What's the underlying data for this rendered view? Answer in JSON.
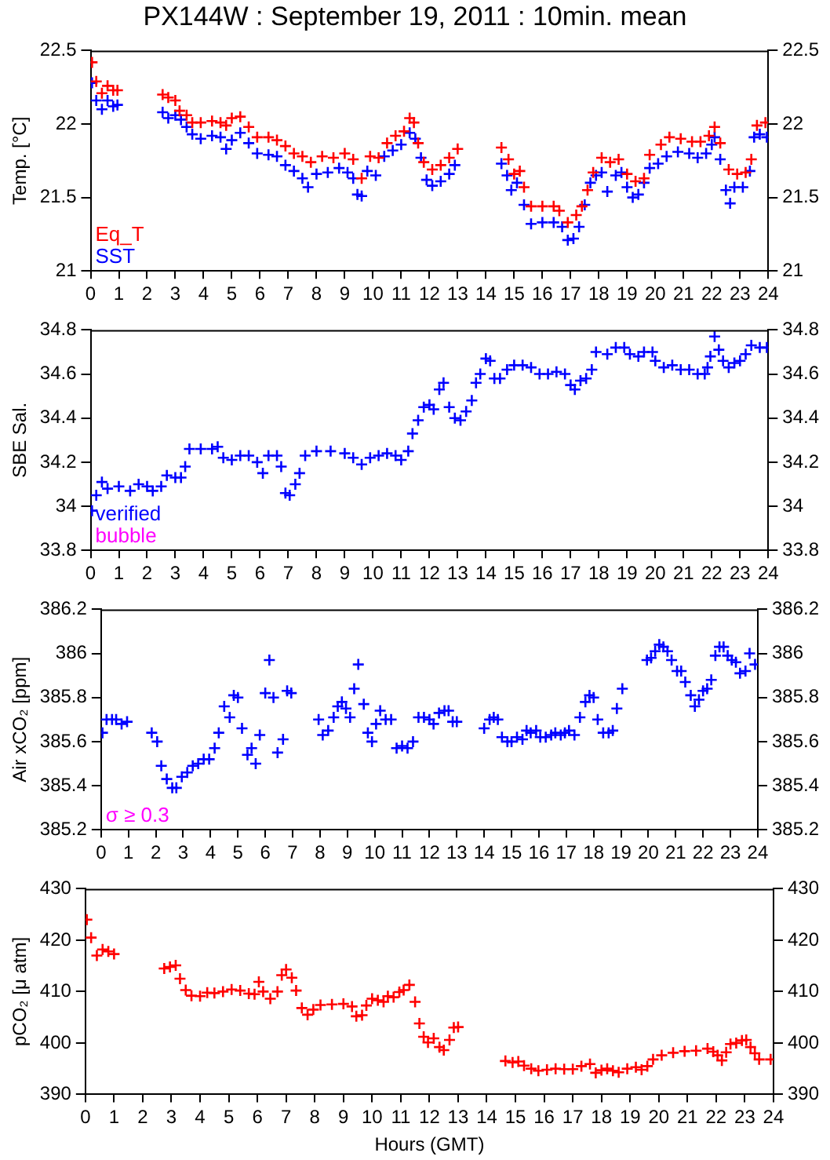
{
  "chart_data": [
    {
      "type": "scatter",
      "title": "PX144W : September 19, 2011 : 10min. mean",
      "ylabel": "Temp. [°C]",
      "xlim": [
        0,
        24
      ],
      "xticks": [
        0,
        1,
        2,
        3,
        4,
        5,
        6,
        7,
        8,
        9,
        10,
        11,
        12,
        13,
        14,
        15,
        16,
        17,
        18,
        19,
        20,
        21,
        22,
        23,
        24
      ],
      "ylim": [
        21,
        22.5
      ],
      "yticks": [
        21,
        21.5,
        22,
        22.5
      ],
      "y2lim": [
        21,
        22.5
      ],
      "y2ticks": [
        21,
        21.5,
        22,
        22.5
      ],
      "marker": "cross",
      "grid": false,
      "legend": "bottom left",
      "series": [
        {
          "name": "Eq_T",
          "color": "#ff0000",
          "x": [
            0.05,
            0.2,
            0.4,
            0.6,
            0.8,
            0.95,
            2.55,
            2.75,
            3.0,
            3.15,
            3.4,
            3.6,
            3.9,
            4.3,
            4.6,
            4.8,
            5.0,
            5.3,
            5.6,
            5.9,
            6.3,
            6.6,
            6.9,
            7.2,
            7.5,
            7.8,
            8.2,
            8.6,
            9.0,
            9.3,
            9.6,
            9.9,
            10.2,
            10.5,
            10.8,
            11.1,
            11.3,
            11.45,
            11.6,
            11.8,
            12.1,
            12.4,
            12.7,
            13.0,
            14.55,
            14.8,
            15.0,
            15.2,
            15.35,
            15.6,
            16.0,
            16.4,
            16.6,
            16.9,
            17.2,
            17.4,
            17.6,
            17.8,
            18.1,
            18.4,
            18.7,
            19.0,
            19.3,
            19.6,
            19.8,
            20.2,
            20.5,
            20.9,
            21.3,
            21.6,
            21.9,
            22.1,
            22.3,
            22.6,
            22.9,
            23.2,
            23.4,
            23.6,
            23.9
          ],
          "values": [
            22.42,
            22.29,
            22.21,
            22.26,
            22.23,
            22.23,
            22.2,
            22.18,
            22.16,
            22.09,
            22.06,
            22.01,
            22.01,
            22.02,
            22.01,
            21.99,
            22.04,
            22.05,
            21.98,
            21.91,
            21.91,
            21.89,
            21.85,
            21.8,
            21.78,
            21.74,
            21.78,
            21.77,
            21.8,
            21.76,
            21.63,
            21.78,
            21.77,
            21.87,
            21.92,
            21.95,
            22.04,
            22.01,
            21.87,
            21.74,
            21.69,
            21.72,
            21.77,
            21.83,
            21.84,
            21.76,
            21.66,
            21.68,
            21.57,
            21.44,
            21.44,
            21.44,
            21.41,
            21.33,
            21.38,
            21.44,
            21.55,
            21.67,
            21.77,
            21.74,
            21.76,
            21.66,
            21.61,
            21.63,
            21.79,
            21.86,
            21.91,
            21.9,
            21.88,
            21.88,
            21.92,
            21.98,
            21.87,
            21.69,
            21.66,
            21.67,
            21.76,
            21.99,
            22.01
          ]
        },
        {
          "name": "SST",
          "color": "#0000ff",
          "x": [
            0.05,
            0.2,
            0.4,
            0.6,
            0.8,
            0.95,
            2.55,
            2.75,
            3.0,
            3.2,
            3.4,
            3.6,
            3.9,
            4.3,
            4.6,
            4.8,
            5.0,
            5.3,
            5.6,
            5.9,
            6.3,
            6.6,
            6.9,
            7.2,
            7.5,
            7.7,
            8.0,
            8.4,
            8.8,
            9.1,
            9.3,
            9.45,
            9.6,
            9.8,
            10.1,
            10.4,
            10.7,
            11.0,
            11.3,
            11.5,
            11.7,
            11.9,
            12.1,
            12.4,
            12.7,
            12.9,
            14.55,
            14.75,
            14.9,
            15.1,
            15.35,
            15.6,
            16.0,
            16.4,
            16.7,
            16.9,
            17.1,
            17.3,
            17.5,
            17.7,
            17.9,
            18.1,
            18.3,
            18.6,
            18.8,
            19.0,
            19.2,
            19.4,
            19.6,
            19.8,
            20.1,
            20.4,
            20.8,
            21.2,
            21.5,
            21.8,
            22.0,
            22.1,
            22.3,
            22.5,
            22.65,
            22.8,
            23.1,
            23.35,
            23.5,
            23.7,
            23.95
          ],
          "values": [
            22.28,
            22.16,
            22.1,
            22.16,
            22.12,
            22.13,
            22.08,
            22.04,
            22.06,
            22.03,
            21.98,
            21.93,
            21.9,
            21.92,
            21.91,
            21.83,
            21.89,
            21.94,
            21.87,
            21.8,
            21.79,
            21.78,
            21.72,
            21.68,
            21.63,
            21.57,
            21.66,
            21.67,
            21.7,
            21.67,
            21.63,
            21.52,
            21.51,
            21.68,
            21.65,
            21.78,
            21.82,
            21.86,
            21.94,
            21.9,
            21.77,
            21.62,
            21.58,
            21.61,
            21.66,
            21.72,
            21.73,
            21.65,
            21.55,
            21.6,
            21.45,
            21.32,
            21.33,
            21.33,
            21.3,
            21.21,
            21.22,
            21.3,
            21.45,
            21.6,
            21.65,
            21.67,
            21.54,
            21.65,
            21.67,
            21.57,
            21.5,
            21.52,
            21.6,
            21.7,
            21.73,
            21.78,
            21.81,
            21.8,
            21.77,
            21.8,
            21.86,
            21.91,
            21.76,
            21.55,
            21.46,
            21.57,
            21.57,
            21.68,
            21.91,
            21.93,
            21.91
          ]
        }
      ]
    },
    {
      "type": "scatter",
      "ylabel": "SBE Sal.",
      "xlim": [
        0,
        24
      ],
      "xticks": [
        0,
        1,
        2,
        3,
        4,
        5,
        6,
        7,
        8,
        9,
        10,
        11,
        12,
        13,
        14,
        15,
        16,
        17,
        18,
        19,
        20,
        21,
        22,
        23,
        24
      ],
      "ylim": [
        33.8,
        34.8
      ],
      "yticks": [
        33.8,
        34,
        34.2,
        34.4,
        34.6,
        34.8
      ],
      "y2lim": [
        33.8,
        34.8
      ],
      "y2ticks": [
        33.8,
        34,
        34.2,
        34.4,
        34.6,
        34.8
      ],
      "marker": "cross",
      "grid": false,
      "legend": "bottom left",
      "annotations": [
        "bubble"
      ],
      "series": [
        {
          "name": "verified",
          "color": "#0000ff",
          "x": [
            0.05,
            0.2,
            0.4,
            0.6,
            1.0,
            1.4,
            1.7,
            2.0,
            2.2,
            2.5,
            2.7,
            3.0,
            3.2,
            3.35,
            3.5,
            3.9,
            4.3,
            4.5,
            4.7,
            5.0,
            5.3,
            5.6,
            5.9,
            6.1,
            6.3,
            6.6,
            6.75,
            6.9,
            7.05,
            7.25,
            7.4,
            7.6,
            8.0,
            8.5,
            9.0,
            9.3,
            9.6,
            9.9,
            10.2,
            10.5,
            10.8,
            11.0,
            11.25,
            11.4,
            11.6,
            11.8,
            12.0,
            12.15,
            12.35,
            12.5,
            12.7,
            12.9,
            13.1,
            13.3,
            13.5,
            13.65,
            13.8,
            14.0,
            14.15,
            14.3,
            14.5,
            14.75,
            15.0,
            15.3,
            15.6,
            15.9,
            16.2,
            16.5,
            16.8,
            17.0,
            17.15,
            17.35,
            17.55,
            17.75,
            17.9,
            18.3,
            18.6,
            18.9,
            19.1,
            19.4,
            19.6,
            19.9,
            20.0,
            20.3,
            20.6,
            20.9,
            21.2,
            21.5,
            21.75,
            21.85,
            21.95,
            22.1,
            22.25,
            22.4,
            22.6,
            22.8,
            23.0,
            23.2,
            23.4,
            23.7,
            23.95
          ],
          "values": [
            33.98,
            34.05,
            34.11,
            34.08,
            34.09,
            34.07,
            34.1,
            34.09,
            34.07,
            34.09,
            34.14,
            34.13,
            34.13,
            34.18,
            34.26,
            34.26,
            34.26,
            34.27,
            34.22,
            34.21,
            34.23,
            34.23,
            34.2,
            34.15,
            34.23,
            34.23,
            34.18,
            34.06,
            34.05,
            34.1,
            34.15,
            34.23,
            34.25,
            34.25,
            34.24,
            34.22,
            34.19,
            34.22,
            34.23,
            34.24,
            34.23,
            34.21,
            34.25,
            34.33,
            34.39,
            34.45,
            34.46,
            34.44,
            34.53,
            34.56,
            34.45,
            34.4,
            34.39,
            34.43,
            34.48,
            34.56,
            34.6,
            34.67,
            34.66,
            34.58,
            34.58,
            34.62,
            34.64,
            34.64,
            34.63,
            34.6,
            34.6,
            34.61,
            34.6,
            34.55,
            34.53,
            34.57,
            34.58,
            34.62,
            34.7,
            34.69,
            34.72,
            34.72,
            34.69,
            34.68,
            34.7,
            34.7,
            34.66,
            34.63,
            34.64,
            34.62,
            34.62,
            34.6,
            34.6,
            34.63,
            34.68,
            34.77,
            34.71,
            34.66,
            34.63,
            34.65,
            34.66,
            34.69,
            34.73,
            34.72,
            34.72
          ]
        }
      ]
    },
    {
      "type": "scatter",
      "ylabel": "Air xCO₂ [ppm]",
      "xlim": [
        0,
        24
      ],
      "xticks": [
        0,
        1,
        2,
        3,
        4,
        5,
        6,
        7,
        8,
        9,
        10,
        11,
        12,
        13,
        14,
        15,
        16,
        17,
        18,
        19,
        20,
        21,
        22,
        23,
        24
      ],
      "ylim": [
        385.2,
        386.2
      ],
      "yticks": [
        385.2,
        385.4,
        385.6,
        385.8,
        386,
        386.2
      ],
      "y2lim": [
        385.2,
        386.2
      ],
      "y2ticks": [
        385.2,
        385.4,
        385.6,
        385.8,
        386,
        386.2
      ],
      "marker": "cross",
      "grid": false,
      "annotations": [
        "σ ≥ 0.3"
      ],
      "series": [
        {
          "color": "#0000ff",
          "x": [
            0.05,
            0.2,
            0.4,
            0.55,
            0.75,
            0.95,
            1.85,
            2.05,
            2.2,
            2.4,
            2.6,
            2.75,
            2.95,
            3.15,
            3.35,
            3.55,
            3.75,
            3.95,
            4.15,
            4.3,
            4.5,
            4.7,
            4.85,
            5.0,
            5.15,
            5.35,
            5.5,
            5.65,
            5.8,
            6.0,
            6.15,
            6.3,
            6.45,
            6.65,
            6.8,
            6.95,
            7.95,
            8.1,
            8.3,
            8.5,
            8.65,
            8.8,
            8.95,
            9.1,
            9.25,
            9.4,
            9.6,
            9.75,
            9.9,
            10.05,
            10.2,
            10.4,
            10.6,
            10.8,
            11.0,
            11.2,
            11.4,
            11.6,
            11.8,
            12.0,
            12.15,
            12.35,
            12.55,
            12.7,
            12.85,
            13.0,
            14.0,
            14.2,
            14.35,
            14.5,
            14.65,
            14.85,
            15.0,
            15.2,
            15.4,
            15.55,
            15.7,
            15.9,
            16.05,
            16.25,
            16.45,
            16.6,
            16.8,
            16.95,
            17.1,
            17.3,
            17.5,
            17.7,
            17.85,
            18.0,
            18.15,
            18.35,
            18.55,
            18.7,
            18.85,
            19.05,
            19.95,
            20.1,
            20.25,
            20.4,
            20.55,
            20.7,
            20.85,
            21.05,
            21.2,
            21.35,
            21.55,
            21.7,
            21.85,
            22.0,
            22.15,
            22.3,
            22.45,
            22.6,
            22.75,
            22.9,
            23.05,
            23.2,
            23.35,
            23.55,
            23.7,
            23.9
          ],
          "values": [
            385.64,
            385.7,
            385.7,
            385.7,
            385.68,
            385.69,
            385.64,
            385.6,
            385.49,
            385.43,
            385.39,
            385.39,
            385.44,
            385.46,
            385.49,
            385.5,
            385.52,
            385.52,
            385.57,
            385.64,
            385.76,
            385.71,
            385.81,
            385.8,
            385.66,
            385.54,
            385.57,
            385.5,
            385.63,
            385.82,
            385.97,
            385.8,
            385.55,
            385.61,
            385.83,
            385.82,
            385.7,
            385.63,
            385.65,
            385.71,
            385.76,
            385.78,
            385.75,
            385.71,
            385.84,
            385.95,
            385.77,
            385.64,
            385.6,
            385.68,
            385.74,
            385.7,
            385.7,
            385.57,
            385.58,
            385.57,
            385.6,
            385.71,
            385.71,
            385.7,
            385.68,
            385.73,
            385.74,
            385.74,
            385.69,
            385.69,
            385.66,
            385.7,
            385.71,
            385.7,
            385.62,
            385.6,
            385.6,
            385.62,
            385.61,
            385.65,
            385.64,
            385.65,
            385.62,
            385.62,
            385.63,
            385.64,
            385.63,
            385.64,
            385.65,
            385.63,
            385.71,
            385.78,
            385.81,
            385.8,
            385.7,
            385.64,
            385.64,
            385.65,
            385.75,
            385.84,
            385.97,
            385.98,
            386.01,
            386.04,
            386.03,
            386.01,
            385.97,
            385.92,
            385.92,
            385.87,
            385.81,
            385.76,
            385.79,
            385.83,
            385.84,
            385.88,
            385.99,
            386.03,
            386.03,
            385.99,
            385.97,
            385.96,
            385.91,
            385.92,
            386,
            385.95
          ]
        }
      ]
    },
    {
      "type": "scatter",
      "xlabel": "Hours (GMT)",
      "ylabel": "pCO₂ [μ atm]",
      "xlim": [
        0,
        24
      ],
      "xticks": [
        0,
        1,
        2,
        3,
        4,
        5,
        6,
        7,
        8,
        9,
        10,
        11,
        12,
        13,
        14,
        15,
        16,
        17,
        18,
        19,
        20,
        21,
        22,
        23,
        24
      ],
      "ylim": [
        390,
        430
      ],
      "yticks": [
        390,
        400,
        410,
        420,
        430
      ],
      "y2lim": [
        390,
        430
      ],
      "y2ticks": [
        390,
        400,
        410,
        420,
        430
      ],
      "marker": "cross",
      "grid": false,
      "series": [
        {
          "color": "#ff0000",
          "x": [
            0.05,
            0.2,
            0.4,
            0.6,
            0.8,
            1.0,
            2.75,
            2.95,
            3.15,
            3.3,
            3.5,
            3.7,
            4.0,
            4.25,
            4.5,
            4.8,
            5.1,
            5.4,
            5.7,
            5.9,
            6.05,
            6.2,
            6.45,
            6.7,
            6.85,
            7.0,
            7.2,
            7.35,
            7.55,
            7.75,
            7.95,
            8.2,
            8.6,
            9.0,
            9.3,
            9.45,
            9.65,
            9.8,
            10.0,
            10.2,
            10.4,
            10.55,
            10.75,
            10.95,
            11.1,
            11.3,
            11.5,
            11.65,
            11.8,
            11.95,
            12.15,
            12.35,
            12.5,
            12.7,
            12.85,
            13.0,
            14.65,
            14.9,
            15.1,
            15.3,
            15.55,
            15.8,
            16.1,
            16.4,
            16.7,
            17.0,
            17.3,
            17.6,
            17.8,
            18.0,
            18.2,
            18.4,
            18.6,
            18.9,
            19.2,
            19.4,
            19.6,
            19.8,
            20.1,
            20.5,
            20.9,
            21.3,
            21.7,
            21.9,
            22.05,
            22.2,
            22.35,
            22.5,
            22.7,
            22.9,
            23.05,
            23.2,
            23.35,
            23.5,
            23.9
          ],
          "values": [
            424,
            420.5,
            417,
            418.2,
            417.8,
            417.3,
            414.5,
            414.8,
            415.1,
            412.5,
            410.3,
            409.2,
            409.1,
            409.8,
            409.7,
            410,
            410.4,
            410.2,
            409.6,
            409.5,
            411.9,
            410,
            408.6,
            410,
            413.2,
            414.3,
            412.7,
            410.2,
            406.8,
            405.5,
            406.5,
            407.4,
            407.5,
            407.6,
            407.1,
            405.2,
            405.4,
            407.3,
            408.6,
            408.3,
            408,
            409.1,
            408.9,
            409.9,
            410.3,
            411.3,
            408,
            403.8,
            401.2,
            400.1,
            400.9,
            399.2,
            398.6,
            400.6,
            403,
            403.1,
            396.5,
            396.2,
            396.4,
            395.6,
            395,
            394.6,
            394.8,
            395,
            394.9,
            394.9,
            395.5,
            395.9,
            394.2,
            394.7,
            395,
            394.6,
            394.3,
            395,
            395.3,
            394.8,
            395.5,
            396.8,
            397.6,
            398.1,
            398.4,
            398.5,
            398.9,
            398.3,
            397.6,
            396.6,
            398.2,
            399.8,
            400,
            400.5,
            400.6,
            399.2,
            398,
            396.8,
            396.8
          ]
        }
      ]
    }
  ]
}
